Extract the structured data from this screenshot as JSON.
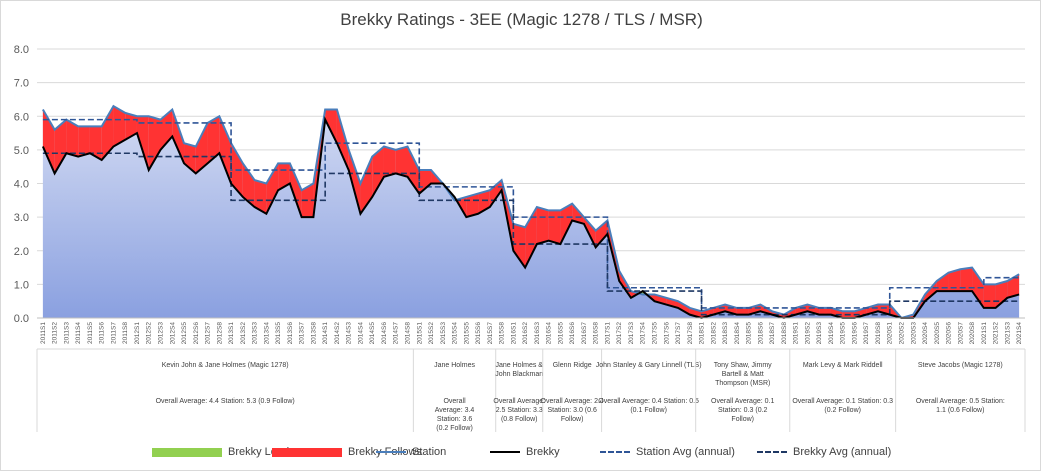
{
  "chart_data": {
    "type": "area",
    "title": "Brekky Ratings - 3EE (Magic 1278 / TLS / MSR)",
    "ylim": [
      0,
      8
    ],
    "yticks": [
      "0.0",
      "1.0",
      "2.0",
      "3.0",
      "4.0",
      "5.0",
      "6.0",
      "7.0",
      "8.0"
    ],
    "grid": true,
    "legend_position": "bottom",
    "categories": [
      "2011S1",
      "2011S2",
      "2011S3",
      "2011S4",
      "2011S5",
      "2011S6",
      "2011S7",
      "2011S8",
      "2012S1",
      "2012S2",
      "2012S3",
      "2012S4",
      "2012S5",
      "2012S6",
      "2012S7",
      "2012S8",
      "2013S1",
      "2013S2",
      "2013S3",
      "2013S4",
      "2013S5",
      "2013S6",
      "2013S7",
      "2013S8",
      "2014S1",
      "2014S2",
      "2014S3",
      "2014S4",
      "2014S5",
      "2014S6",
      "2014S7",
      "2014S8",
      "2015S1",
      "2015S2",
      "2015S3",
      "2015S4",
      "2015S5",
      "2015S6",
      "2015S7",
      "2015S8",
      "2016S1",
      "2016S2",
      "2016S3",
      "2016S4",
      "2016S5",
      "2016S6",
      "2016S7",
      "2016S8",
      "2017S1",
      "2017S2",
      "2017S3",
      "2017S4",
      "2017S5",
      "2017S6",
      "2017S7",
      "2017S8",
      "2018S1",
      "2018S2",
      "2018S3",
      "2018S4",
      "2018S5",
      "2018S6",
      "2018S7",
      "2018S8",
      "2019S1",
      "2019S2",
      "2019S3",
      "2019S4",
      "2019S5",
      "2019S6",
      "2019S7",
      "2019S8",
      "2020S1",
      "2020S2",
      "2020S3",
      "2020S4",
      "2020S5",
      "2020S6",
      "2020S7",
      "2020S8",
      "2021S1",
      "2021S2",
      "2021S3",
      "2021S4"
    ],
    "series": [
      {
        "name": "Station",
        "color": "#4a7ebb",
        "values": [
          6.2,
          5.6,
          5.9,
          5.7,
          5.7,
          5.7,
          6.3,
          6.1,
          6.0,
          6.0,
          5.9,
          6.2,
          5.2,
          5.1,
          5.8,
          6.0,
          5.2,
          4.6,
          4.1,
          4.0,
          4.6,
          4.6,
          3.8,
          4.0,
          6.2,
          6.2,
          5.0,
          4.0,
          4.8,
          5.1,
          5.0,
          5.1,
          4.4,
          4.4,
          4.0,
          3.5,
          3.6,
          3.7,
          3.8,
          4.1,
          2.8,
          2.7,
          3.3,
          3.2,
          3.2,
          3.4,
          3.0,
          2.6,
          2.9,
          1.4,
          0.8,
          0.7,
          0.7,
          0.6,
          0.5,
          0.3,
          0.2,
          0.3,
          0.4,
          0.3,
          0.3,
          0.4,
          0.2,
          0.1,
          0.3,
          0.4,
          0.3,
          0.3,
          0.2,
          0.2,
          0.3,
          0.4,
          0.4,
          0.0,
          0.1,
          0.7,
          1.1,
          1.35,
          1.45,
          1.5,
          1.0,
          1.0,
          1.1,
          1.3
        ]
      },
      {
        "name": "Brekky",
        "color": "#000000",
        "values": [
          5.1,
          4.3,
          4.9,
          4.8,
          4.9,
          4.7,
          5.1,
          5.3,
          5.5,
          4.4,
          5.0,
          5.4,
          4.6,
          4.3,
          4.6,
          4.9,
          4.0,
          3.6,
          3.3,
          3.1,
          3.8,
          4.0,
          3.0,
          3.0,
          5.9,
          5.2,
          4.4,
          3.1,
          3.6,
          4.2,
          4.3,
          4.2,
          3.7,
          4.0,
          4.0,
          3.6,
          3.0,
          3.1,
          3.3,
          3.8,
          2.0,
          1.5,
          2.2,
          2.3,
          2.2,
          2.9,
          2.8,
          2.1,
          2.5,
          1.1,
          0.6,
          0.8,
          0.5,
          0.4,
          0.3,
          0.1,
          0.0,
          0.1,
          0.2,
          0.1,
          0.1,
          0.2,
          0.1,
          0.0,
          0.1,
          0.2,
          0.1,
          0.1,
          0.0,
          0.0,
          0.1,
          0.2,
          0.1,
          0.0,
          0.0,
          0.5,
          0.8,
          0.8,
          0.8,
          0.8,
          0.3,
          0.3,
          0.6,
          0.7
        ]
      },
      {
        "name": "Station Avg (annual)",
        "color": "#2f5597",
        "values": [
          5.9,
          5.9,
          5.9,
          5.9,
          5.9,
          5.9,
          5.9,
          5.9,
          5.8,
          5.8,
          5.8,
          5.8,
          5.8,
          5.8,
          5.8,
          5.8,
          4.4,
          4.4,
          4.4,
          4.4,
          4.4,
          4.4,
          4.4,
          4.4,
          5.2,
          5.2,
          5.2,
          5.2,
          5.2,
          5.2,
          5.2,
          5.2,
          3.9,
          3.9,
          3.9,
          3.9,
          3.9,
          3.9,
          3.9,
          3.9,
          3.0,
          3.0,
          3.0,
          3.0,
          3.0,
          3.0,
          3.0,
          3.0,
          0.9,
          0.9,
          0.9,
          0.9,
          0.9,
          0.9,
          0.9,
          0.9,
          0.3,
          0.3,
          0.3,
          0.3,
          0.3,
          0.3,
          0.3,
          0.3,
          0.3,
          0.3,
          0.3,
          0.3,
          0.3,
          0.3,
          0.3,
          0.3,
          0.9,
          0.9,
          0.9,
          0.9,
          0.9,
          0.9,
          0.9,
          0.9,
          1.2,
          1.2,
          1.2,
          1.2
        ]
      },
      {
        "name": "Brekky Avg (annual)",
        "color": "#1f3864",
        "values": [
          4.9,
          4.9,
          4.9,
          4.9,
          4.9,
          4.9,
          4.9,
          4.9,
          4.8,
          4.8,
          4.8,
          4.8,
          4.8,
          4.8,
          4.8,
          4.8,
          3.5,
          3.5,
          3.5,
          3.5,
          3.5,
          3.5,
          3.5,
          3.5,
          4.3,
          4.3,
          4.3,
          4.3,
          4.3,
          4.3,
          4.3,
          4.3,
          3.5,
          3.5,
          3.5,
          3.5,
          3.5,
          3.5,
          3.5,
          3.5,
          2.2,
          2.2,
          2.2,
          2.2,
          2.2,
          2.2,
          2.2,
          2.2,
          0.8,
          0.8,
          0.8,
          0.8,
          0.8,
          0.8,
          0.8,
          0.8,
          0.1,
          0.1,
          0.1,
          0.1,
          0.1,
          0.1,
          0.1,
          0.1,
          0.1,
          0.1,
          0.1,
          0.1,
          0.1,
          0.1,
          0.1,
          0.1,
          0.5,
          0.5,
          0.5,
          0.5,
          0.5,
          0.5,
          0.5,
          0.5,
          0.5,
          0.5,
          0.5,
          0.5
        ]
      }
    ],
    "legend": [
      {
        "name": "Brekky Leads",
        "kind": "fill",
        "color": "#92d050"
      },
      {
        "name": "Brekky Follows",
        "kind": "fill",
        "color": "#ff3333"
      },
      {
        "name": "Station",
        "kind": "line",
        "color": "#4a7ebb"
      },
      {
        "name": "Brekky",
        "kind": "line",
        "color": "#000000"
      },
      {
        "name": "Station Avg (annual)",
        "kind": "dash",
        "color": "#2f5597"
      },
      {
        "name": "Brekky Avg (annual)",
        "kind": "dash",
        "color": "#1f3864"
      }
    ],
    "presenter_bands": [
      {
        "start": 0,
        "end": 31,
        "label": "Kevin John & Jane Holmes (Magic 1278)",
        "summary": [
          "Overall Average: 4.4 Station: 5.3 (0.9 Follow)"
        ]
      },
      {
        "start": 32,
        "end": 38,
        "label": "Jane Holmes",
        "summary": [
          "Overall",
          "Average: 3.4",
          "Station: 3.6",
          "(0.2 Follow)"
        ]
      },
      {
        "start": 39,
        "end": 42,
        "label": "Jane Holmes &\nJohn Blackman",
        "summary": [
          "Overall Average:",
          "2.5 Station: 3.3",
          "(0.8 Follow)"
        ]
      },
      {
        "start": 43,
        "end": 47,
        "label": "Glenn Ridge",
        "summary": [
          "Overall Average: 2.4",
          "Station: 3.0 (0.6",
          "Follow)"
        ]
      },
      {
        "start": 48,
        "end": 55,
        "label": "John Stanley & Gary Linnell (TLS)",
        "summary": [
          "Overall Average: 0.4 Station: 0.5",
          "(0.1 Follow)"
        ]
      },
      {
        "start": 56,
        "end": 63,
        "label": "Tony Shaw, Jimmy\nBartell & Matt\nThompson (MSR)",
        "summary": [
          "Overall Average: 0.1",
          "Station: 0.3 (0.2",
          "Follow)"
        ]
      },
      {
        "start": 64,
        "end": 72,
        "label": "Mark Levy & Mark Riddell",
        "summary": [
          "Overall Average: 0.1 Station: 0.3",
          "(0.2 Follow)"
        ]
      },
      {
        "start": 73,
        "end": 83,
        "label": "Steve Jacobs (Magic 1278)",
        "summary": [
          "Overall Average: 0.5 Station:",
          "1.1 (0.6 Follow)"
        ]
      }
    ]
  }
}
